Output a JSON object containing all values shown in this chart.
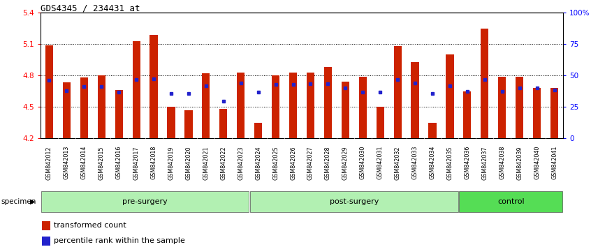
{
  "title": "GDS4345 / 234431_at",
  "samples": [
    "GSM842012",
    "GSM842013",
    "GSM842014",
    "GSM842015",
    "GSM842016",
    "GSM842017",
    "GSM842018",
    "GSM842019",
    "GSM842020",
    "GSM842021",
    "GSM842022",
    "GSM842023",
    "GSM842024",
    "GSM842025",
    "GSM842026",
    "GSM842027",
    "GSM842028",
    "GSM842029",
    "GSM842030",
    "GSM842031",
    "GSM842032",
    "GSM842033",
    "GSM842034",
    "GSM842035",
    "GSM842036",
    "GSM842037",
    "GSM842038",
    "GSM842039",
    "GSM842040",
    "GSM842041"
  ],
  "red_values": [
    5.09,
    4.73,
    4.78,
    4.8,
    4.66,
    5.13,
    5.19,
    4.5,
    4.47,
    4.82,
    4.48,
    4.83,
    4.35,
    4.8,
    4.83,
    4.83,
    4.88,
    4.74,
    4.79,
    4.5,
    5.08,
    4.93,
    4.35,
    5.0,
    4.65,
    5.25,
    4.79,
    4.79,
    4.68,
    4.68
  ],
  "blue_values": [
    4.755,
    4.655,
    4.695,
    4.695,
    4.64,
    4.758,
    4.77,
    4.628,
    4.628,
    4.7,
    4.555,
    4.728,
    4.64,
    4.712,
    4.712,
    4.718,
    4.718,
    4.677,
    4.638,
    4.638,
    4.758,
    4.73,
    4.628,
    4.7,
    4.648,
    4.758,
    4.648,
    4.677,
    4.677,
    4.659
  ],
  "groups": [
    {
      "label": "pre-surgery",
      "start": 0,
      "end": 12,
      "color": "#b2f0b2"
    },
    {
      "label": "post-surgery",
      "start": 12,
      "end": 24,
      "color": "#b2f0b2"
    },
    {
      "label": "control",
      "start": 24,
      "end": 30,
      "color": "#55dd55"
    }
  ],
  "ylim_left": [
    4.2,
    5.4
  ],
  "ylim_right": [
    0,
    100
  ],
  "yticks_left": [
    4.2,
    4.5,
    4.8,
    5.1,
    5.4
  ],
  "yticks_right": [
    0,
    25,
    50,
    75,
    100
  ],
  "ytick_labels_right": [
    "0",
    "25",
    "50",
    "75",
    "100%"
  ],
  "grid_lines": [
    4.5,
    4.8,
    5.1
  ],
  "bar_color": "#cc2200",
  "dot_color": "#2222cc",
  "bar_bottom": 4.2,
  "xtick_bg": "#c8c8c8"
}
